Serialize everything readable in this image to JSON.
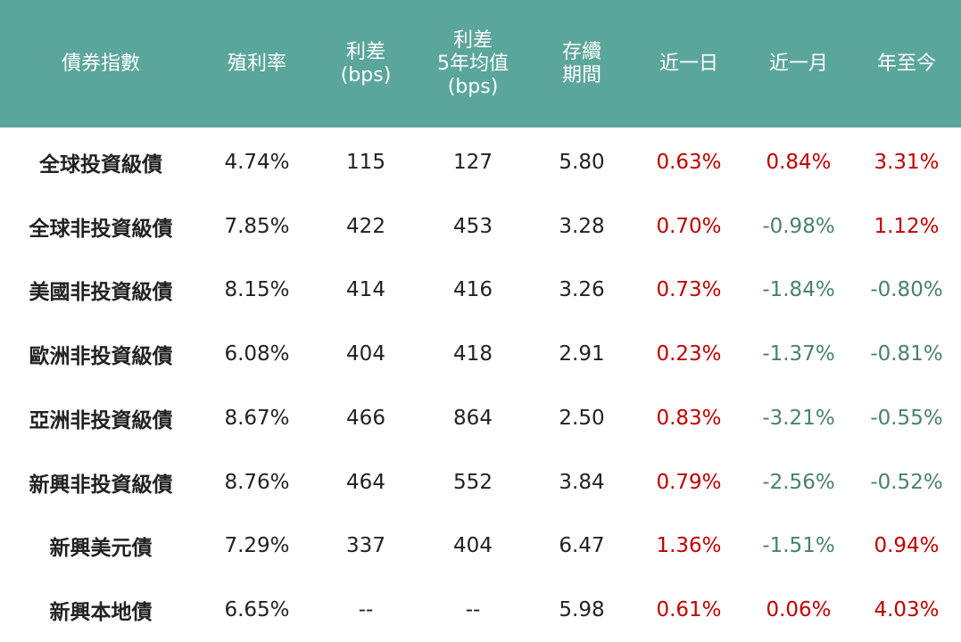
{
  "table": {
    "header": [
      [
        "債券指數"
      ],
      [
        "殖利率"
      ],
      [
        "利差",
        "(bps)"
      ],
      [
        "利差",
        "5年均值",
        "(bps)"
      ],
      [
        "存續",
        "期間"
      ],
      [
        "近一日"
      ],
      [
        "近一月"
      ],
      [
        "年至今"
      ]
    ],
    "rows": [
      [
        "全球投資級債",
        "4.74%",
        "115",
        "127",
        "5.80",
        "0.63%",
        "0.84%",
        "3.31%"
      ],
      [
        "全球非投資級債",
        "7.85%",
        "422",
        "453",
        "3.28",
        "0.70%",
        "-0.98%",
        "1.12%"
      ],
      [
        "美國非投資級債",
        "8.15%",
        "414",
        "416",
        "3.26",
        "0.73%",
        "-1.84%",
        "-0.80%"
      ],
      [
        "歐洲非投資級債",
        "6.08%",
        "404",
        "418",
        "2.91",
        "0.23%",
        "-1.37%",
        "-0.81%"
      ],
      [
        "亞洲非投資級債",
        "8.67%",
        "466",
        "864",
        "2.50",
        "0.83%",
        "-3.21%",
        "-0.55%"
      ],
      [
        "新興非投資級債",
        "8.76%",
        "464",
        "552",
        "3.84",
        "0.79%",
        "-2.56%",
        "-0.52%"
      ],
      [
        "新興美元債",
        "7.29%",
        "337",
        "404",
        "6.47",
        "1.36%",
        "-1.51%",
        "0.94%"
      ],
      [
        "新興本地債",
        "6.65%",
        "--",
        "--",
        "5.98",
        "0.61%",
        "0.06%",
        "4.03%"
      ]
    ],
    "header_color": "#5ba69b",
    "positive_color": "#c00000",
    "negative_color": "#4a7f74"
  }
}
